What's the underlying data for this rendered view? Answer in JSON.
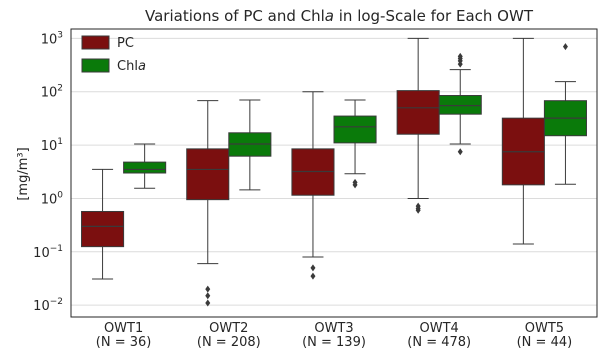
{
  "chart_data": {
    "type": "box",
    "title_parts": [
      "Variations of PC and Chl",
      "a",
      " in log-Scale for Each OWT"
    ],
    "ylabel": "[mg/m³]",
    "y_scale": "log",
    "ylim": [
      0.006,
      1500
    ],
    "y_ticks": [
      {
        "value": 0.01,
        "base": "10",
        "exp": "−2"
      },
      {
        "value": 0.1,
        "base": "10",
        "exp": "−1"
      },
      {
        "value": 1,
        "base": "10",
        "exp": "0"
      },
      {
        "value": 10,
        "base": "10",
        "exp": "1"
      },
      {
        "value": 100,
        "base": "10",
        "exp": "2"
      },
      {
        "value": 1000,
        "base": "10",
        "exp": "3"
      }
    ],
    "grid": true,
    "legend_position": "top-left",
    "categories": [
      {
        "name": "OWT1",
        "n_label": "(N = 36)"
      },
      {
        "name": "OWT2",
        "n_label": "(N = 208)"
      },
      {
        "name": "OWT3",
        "n_label": "(N = 139)"
      },
      {
        "name": "OWT4",
        "n_label": "(N = 478)"
      },
      {
        "name": "OWT5",
        "n_label": "(N = 44)"
      }
    ],
    "series": [
      {
        "name": "PC",
        "name_parts": [
          "PC",
          ""
        ],
        "color": "#7b0f0f",
        "boxes": [
          {
            "whislo": 0.031,
            "q1": 0.125,
            "med": 0.3,
            "q3": 0.57,
            "whishi": 3.5,
            "fliers": []
          },
          {
            "whislo": 0.06,
            "q1": 0.95,
            "med": 3.5,
            "q3": 8.5,
            "whishi": 68,
            "fliers": [
              0.011,
              0.015,
              0.02
            ]
          },
          {
            "whislo": 0.08,
            "q1": 1.15,
            "med": 3.2,
            "q3": 8.5,
            "whishi": 100,
            "fliers": [
              0.035,
              0.05
            ]
          },
          {
            "whislo": 1.0,
            "q1": 16,
            "med": 50,
            "q3": 105,
            "whishi": 1000,
            "fliers": [
              0.6,
              0.65,
              0.72
            ]
          },
          {
            "whislo": 0.14,
            "q1": 1.8,
            "med": 7.5,
            "q3": 32,
            "whishi": 1000,
            "fliers": []
          }
        ]
      },
      {
        "name": "Chla",
        "name_parts": [
          "Chl",
          "a"
        ],
        "color": "#0a7a0a",
        "boxes": [
          {
            "whislo": 1.55,
            "q1": 3.0,
            "med": 3.5,
            "q3": 4.8,
            "whishi": 10.5,
            "fliers": []
          },
          {
            "whislo": 1.45,
            "q1": 6.2,
            "med": 10.5,
            "q3": 17,
            "whishi": 70,
            "fliers": []
          },
          {
            "whislo": 2.9,
            "q1": 11,
            "med": 22,
            "q3": 35,
            "whishi": 70,
            "fliers": [
              1.8,
              2.0
            ]
          },
          {
            "whislo": 10.5,
            "q1": 38,
            "med": 55,
            "q3": 85,
            "whishi": 260,
            "fliers": [
              7.5,
              330,
              380,
              420,
              460
            ]
          },
          {
            "whislo": 1.85,
            "q1": 15,
            "med": 32,
            "q3": 68,
            "whishi": 155,
            "fliers": [
              700
            ]
          }
        ]
      }
    ]
  }
}
